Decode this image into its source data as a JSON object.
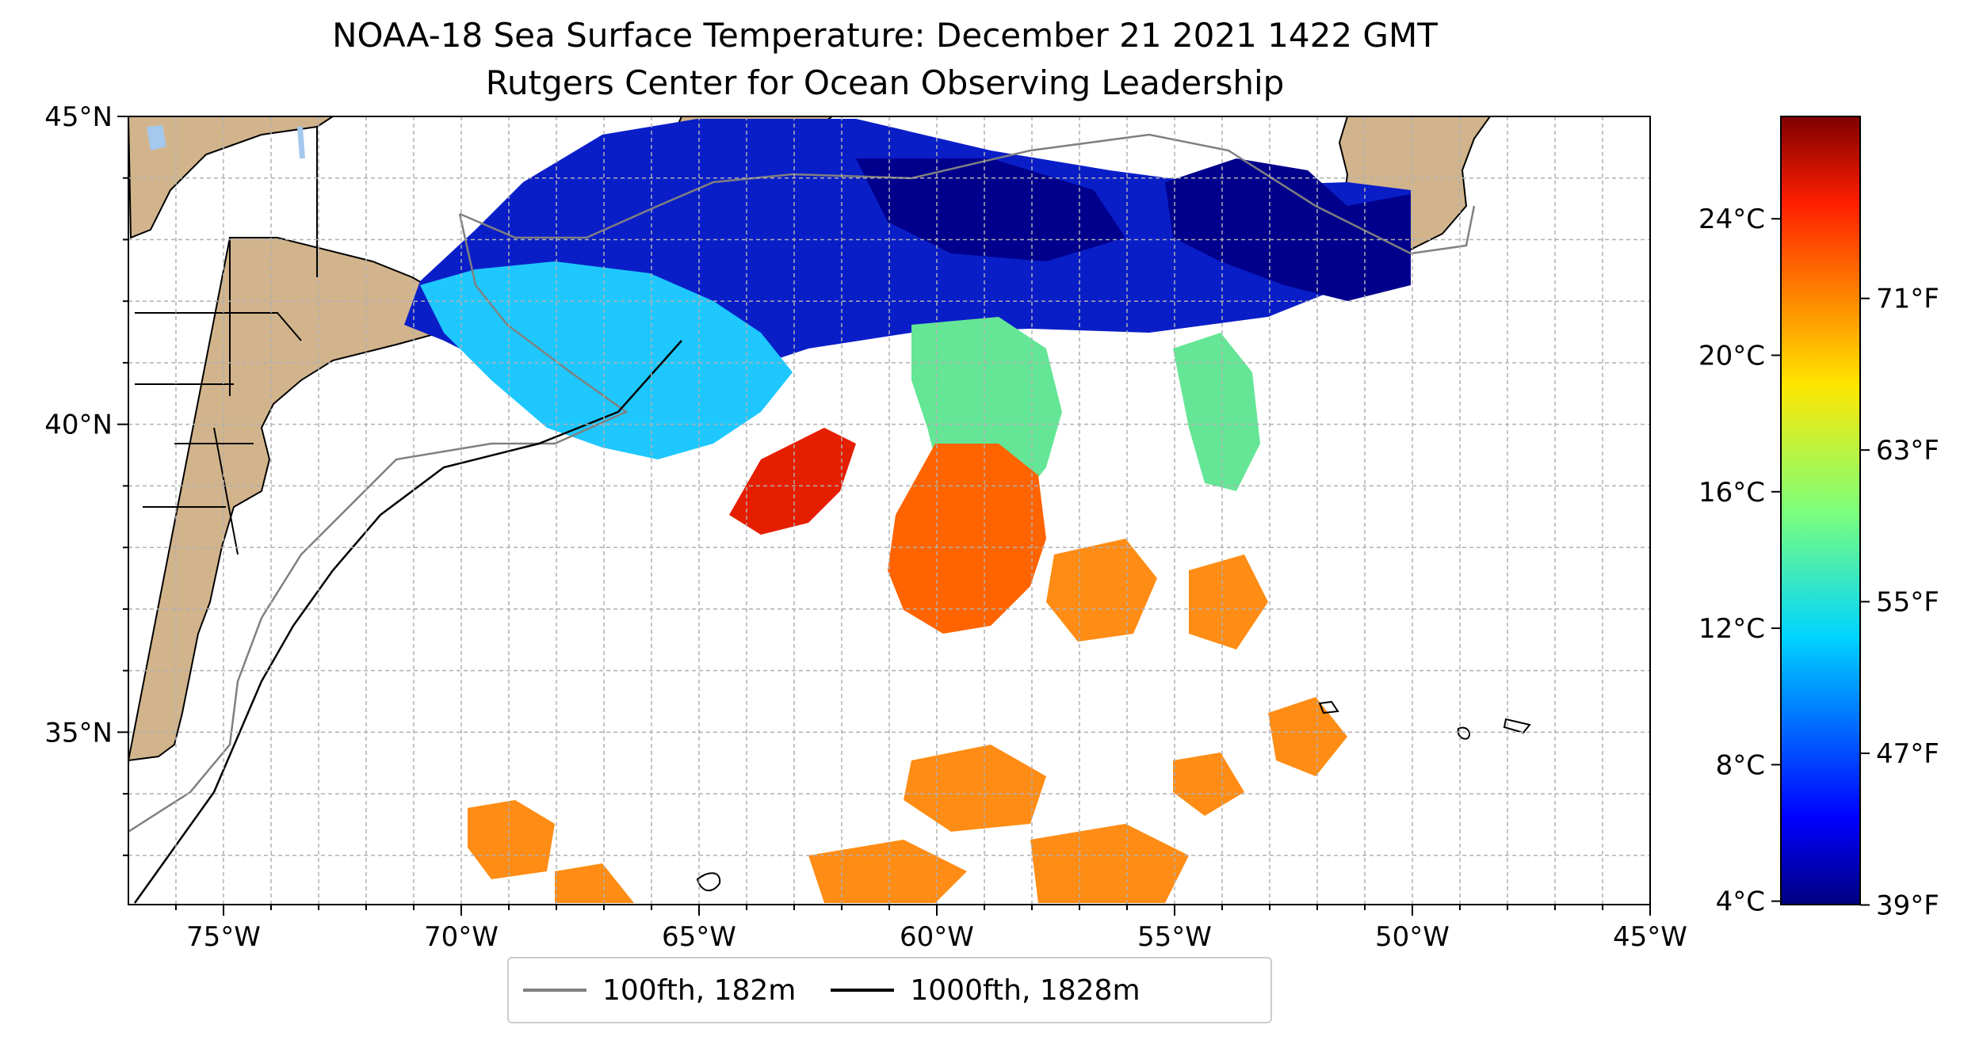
{
  "title": {
    "line1": "NOAA-18 Sea Surface Temperature: December 21 2021 1422 GMT",
    "line2": "Rutgers Center for Ocean Observing Leadership"
  },
  "axes": {
    "lon_labels": [
      "75°W",
      "70°W",
      "65°W",
      "60°W",
      "55°W",
      "50°W",
      "45°W"
    ],
    "lat_labels": [
      "45°N",
      "40°N",
      "35°N"
    ],
    "lon_range": [
      -77,
      -45
    ],
    "lat_range": [
      32.2,
      45
    ],
    "grid": true
  },
  "legend": {
    "items": [
      {
        "label": "100fth, 182m",
        "color": "#808080"
      },
      {
        "label": "1000fth, 1828m",
        "color": "#000000"
      }
    ]
  },
  "colorbar": {
    "colormap": "jet",
    "celsius_ticks": [
      "24°C",
      "20°C",
      "16°C",
      "12°C",
      "8°C",
      "4°C"
    ],
    "fahrenheit_ticks": [
      "71°F",
      "63°F",
      "55°F",
      "47°F",
      "39°F"
    ],
    "range_c": [
      3.9,
      27
    ]
  },
  "colors": {
    "land": "#d2b48c",
    "lakes": "#a4c8ee",
    "grid": "#b0b0b0",
    "isobath_100fth": "#808080",
    "isobath_1000fth": "#000000"
  }
}
